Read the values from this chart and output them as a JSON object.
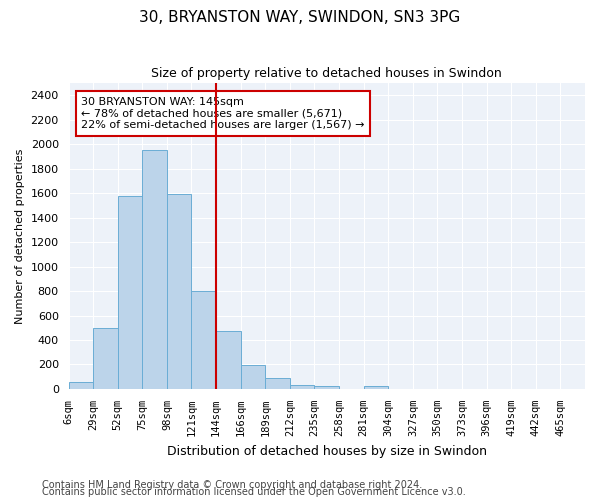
{
  "title": "30, BRYANSTON WAY, SWINDON, SN3 3PG",
  "subtitle": "Size of property relative to detached houses in Swindon",
  "xlabel": "Distribution of detached houses by size in Swindon",
  "ylabel": "Number of detached properties",
  "bar_labels": [
    "6sqm",
    "29sqm",
    "52sqm",
    "75sqm",
    "98sqm",
    "121sqm",
    "144sqm",
    "166sqm",
    "189sqm",
    "212sqm",
    "235sqm",
    "258sqm",
    "281sqm",
    "304sqm",
    "327sqm",
    "350sqm",
    "373sqm",
    "396sqm",
    "419sqm",
    "442sqm",
    "465sqm"
  ],
  "bar_values": [
    60,
    500,
    1580,
    1950,
    1590,
    800,
    475,
    195,
    90,
    35,
    25,
    0,
    20,
    0,
    0,
    0,
    0,
    0,
    0,
    0,
    0
  ],
  "bar_color": "#bcd4ea",
  "bar_edge_color": "#6aadd5",
  "vline_x": 6,
  "vline_color": "#cc0000",
  "annotation_text": "30 BRYANSTON WAY: 145sqm\n← 78% of detached houses are smaller (5,671)\n22% of semi-detached houses are larger (1,567) →",
  "annotation_box_color": "white",
  "annotation_box_edge": "#cc0000",
  "ylim": [
    0,
    2500
  ],
  "yticks": [
    0,
    200,
    400,
    600,
    800,
    1000,
    1200,
    1400,
    1600,
    1800,
    2000,
    2200,
    2400
  ],
  "footer1": "Contains HM Land Registry data © Crown copyright and database right 2024.",
  "footer2": "Contains public sector information licensed under the Open Government Licence v3.0.",
  "bg_color": "#edf2f9",
  "fig_bg_color": "#ffffff",
  "grid_color": "#ffffff",
  "title_fontsize": 11,
  "subtitle_fontsize": 9,
  "ylabel_fontsize": 8,
  "xlabel_fontsize": 9,
  "tick_fontsize": 8,
  "xtick_fontsize": 7.5,
  "annotation_fontsize": 8,
  "footer_fontsize": 7
}
